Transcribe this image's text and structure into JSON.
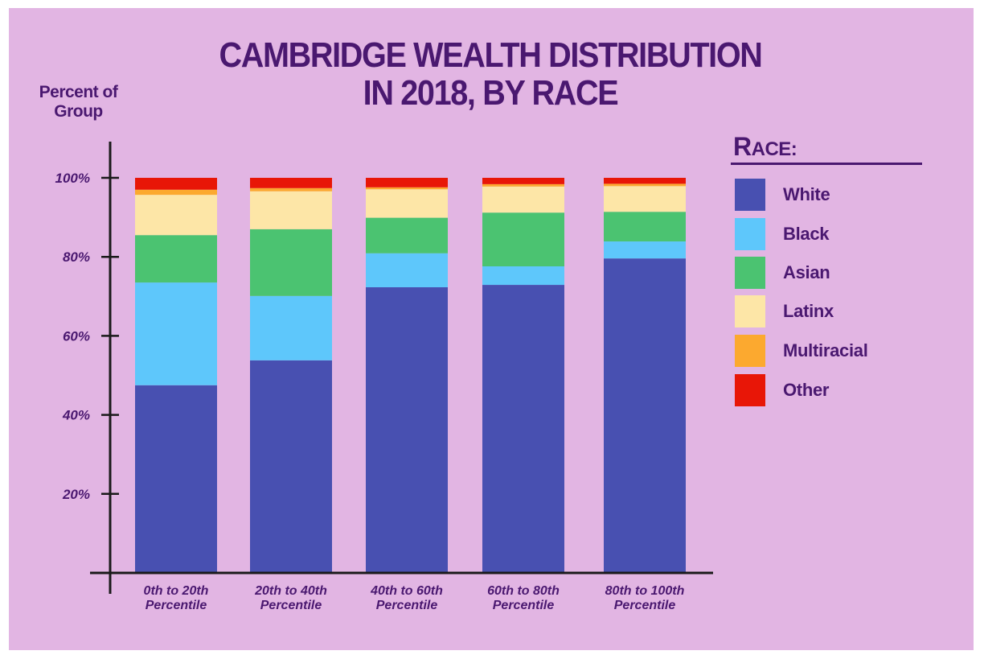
{
  "chart_data": {
    "type": "bar",
    "stacked": true,
    "title_lines": [
      "CAMBRIDGE WEALTH DISTRIBUTION",
      "IN 2018, BY RACE"
    ],
    "ylabel_lines": [
      "Percent of",
      "Group"
    ],
    "xlabel": "",
    "categories": [
      [
        "0th to 20th",
        "Percentile"
      ],
      [
        "20th to 40th",
        "Percentile"
      ],
      [
        "40th to 60th",
        "Percentile"
      ],
      [
        "60th to 80th",
        "Percentile"
      ],
      [
        "80th to 100th",
        "Percentile"
      ]
    ],
    "yticks": [
      {
        "value": 20,
        "label": "20%"
      },
      {
        "value": 40,
        "label": "40%"
      },
      {
        "value": 60,
        "label": "60%"
      },
      {
        "value": 80,
        "label": "80%"
      },
      {
        "value": 100,
        "label": "100%"
      }
    ],
    "ylim": [
      0,
      110
    ],
    "grid": false,
    "legend_position": "right",
    "legend_title": "Race:",
    "series": [
      {
        "name": "White",
        "color": "#4850b1",
        "values": [
          47.5,
          53.8,
          72.3,
          72.9,
          79.6
        ]
      },
      {
        "name": "Black",
        "color": "#5ec7fb",
        "values": [
          26.0,
          16.3,
          8.6,
          4.7,
          4.3
        ]
      },
      {
        "name": "Asian",
        "color": "#4bc371",
        "values": [
          12.0,
          16.9,
          9.0,
          13.6,
          7.5
        ]
      },
      {
        "name": "Latinx",
        "color": "#fde6a7",
        "values": [
          10.2,
          9.6,
          7.2,
          6.6,
          6.5
        ]
      },
      {
        "name": "Multiracial",
        "color": "#fca92f",
        "values": [
          1.3,
          0.8,
          0.5,
          0.6,
          0.6
        ]
      },
      {
        "name": "Other",
        "color": "#e81607",
        "values": [
          3.0,
          2.6,
          2.4,
          1.6,
          1.5
        ]
      }
    ]
  }
}
